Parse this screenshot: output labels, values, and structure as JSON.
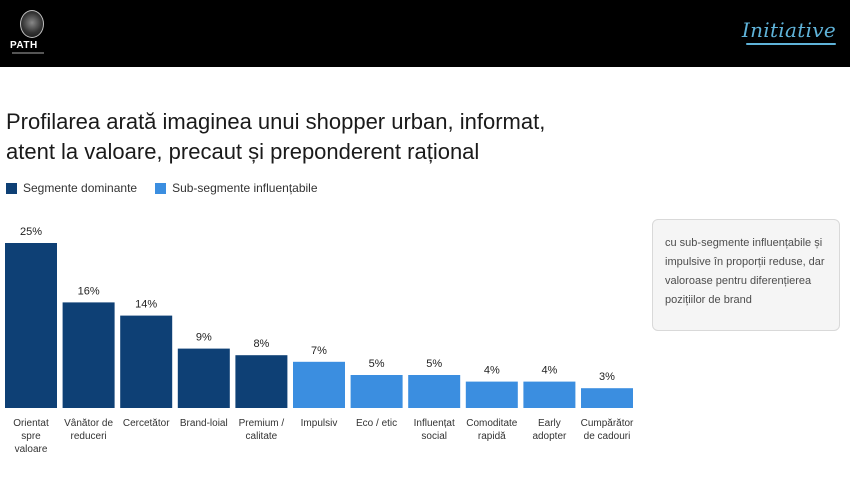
{
  "header": {
    "left_logo": "PATH",
    "right_logo": "Initiative"
  },
  "title_line1": "Profilarea arată imaginea unui shopper urban, informat,",
  "title_line2": "atent la valoare, precaut și preponderent rațional",
  "legend": {
    "dominant": "Segmente dominante",
    "influenceable": "Sub-segmente influențabile"
  },
  "note": "cu sub-segmente influențabile și impulsive în proporții reduse, dar valoroase pentru diferențierea pozițiilor de brand",
  "colors": {
    "dominant": "#0e4075",
    "influenceable": "#3b8ee0"
  },
  "chart_data": {
    "type": "bar",
    "ylim": [
      0,
      25
    ],
    "value_suffix": "%",
    "categories": [
      [
        "Orientat",
        "spre",
        "valoare"
      ],
      [
        "Vânător de",
        "reduceri"
      ],
      [
        "Cercetător"
      ],
      [
        "Brand-loial"
      ],
      [
        "Premium /",
        "calitate"
      ],
      [
        "Impulsiv"
      ],
      [
        "Eco / etic"
      ],
      [
        "Influențat",
        "social"
      ],
      [
        "Comoditate",
        "rapidă"
      ],
      [
        "Early",
        "adopter"
      ],
      [
        "Cumpărător",
        "de cadouri"
      ]
    ],
    "values": [
      25,
      16,
      14,
      9,
      8,
      7,
      5,
      5,
      4,
      4,
      3
    ],
    "groups": [
      "dominant",
      "dominant",
      "dominant",
      "dominant",
      "dominant",
      "influenceable",
      "influenceable",
      "influenceable",
      "influenceable",
      "influenceable",
      "influenceable"
    ]
  }
}
